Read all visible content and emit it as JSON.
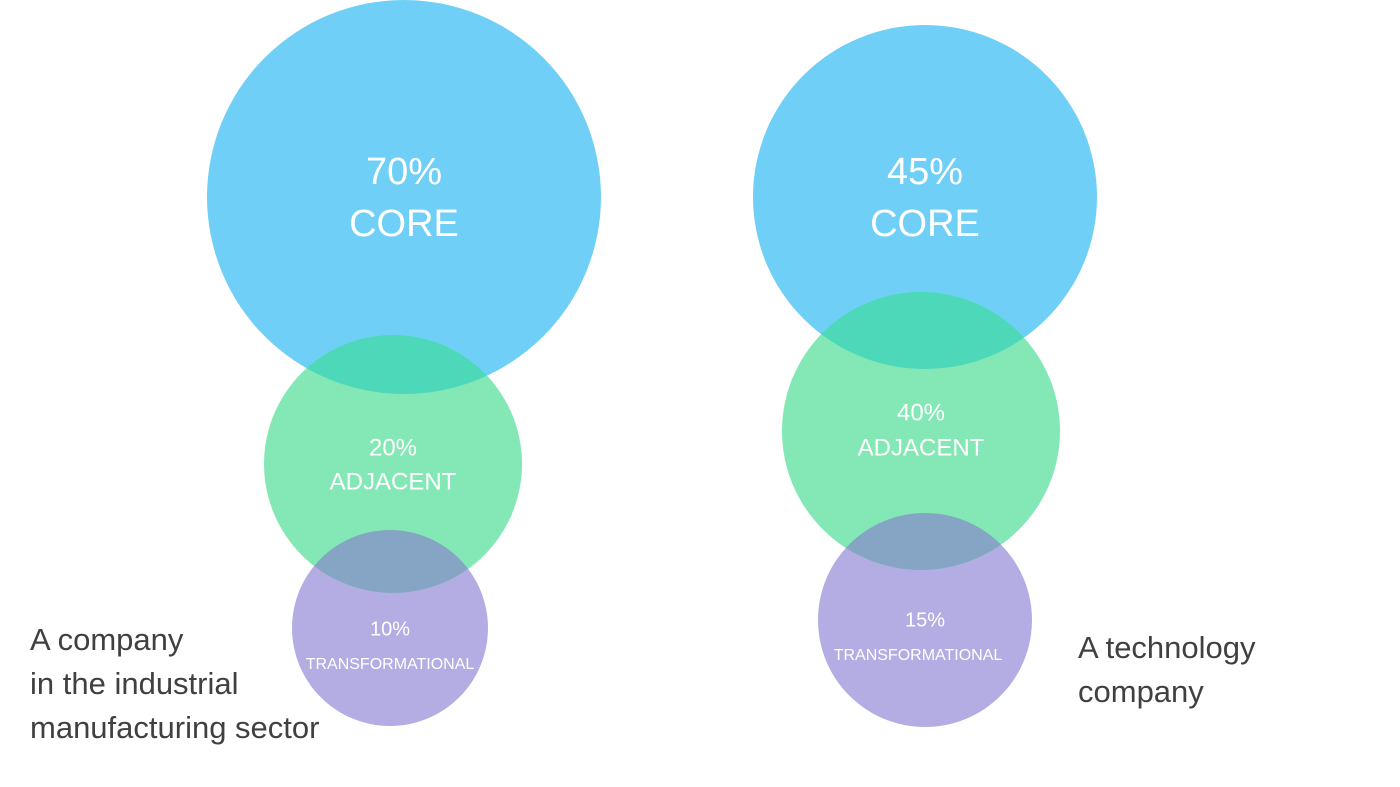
{
  "colors": {
    "core": "#6FCFF6",
    "adjacent": "#84E8B6",
    "transformational": "#B3ADE3",
    "overlap_core_adjacent": "#4CD8B9",
    "overlap_adjacent_transformational": "#86A5C4",
    "caption_text": "#404040"
  },
  "diagrams": [
    {
      "caption_lines": [
        "A company",
        "in the industrial",
        "manufacturing sector"
      ],
      "core": {
        "percent": "70%",
        "label": "CORE",
        "share": 70
      },
      "adjacent": {
        "percent": "20%",
        "label": "ADJACENT",
        "share": 20
      },
      "transformational": {
        "percent": "10%",
        "label": "TRANSFORMATIONAL",
        "share": 10
      }
    },
    {
      "caption_lines": [
        "A technology",
        "company"
      ],
      "core": {
        "percent": "45%",
        "label": "CORE",
        "share": 45
      },
      "adjacent": {
        "percent": "40%",
        "label": "ADJACENT",
        "share": 40
      },
      "transformational": {
        "percent": "15%",
        "label": "TRANSFORMATIONAL",
        "share": 15
      }
    }
  ]
}
